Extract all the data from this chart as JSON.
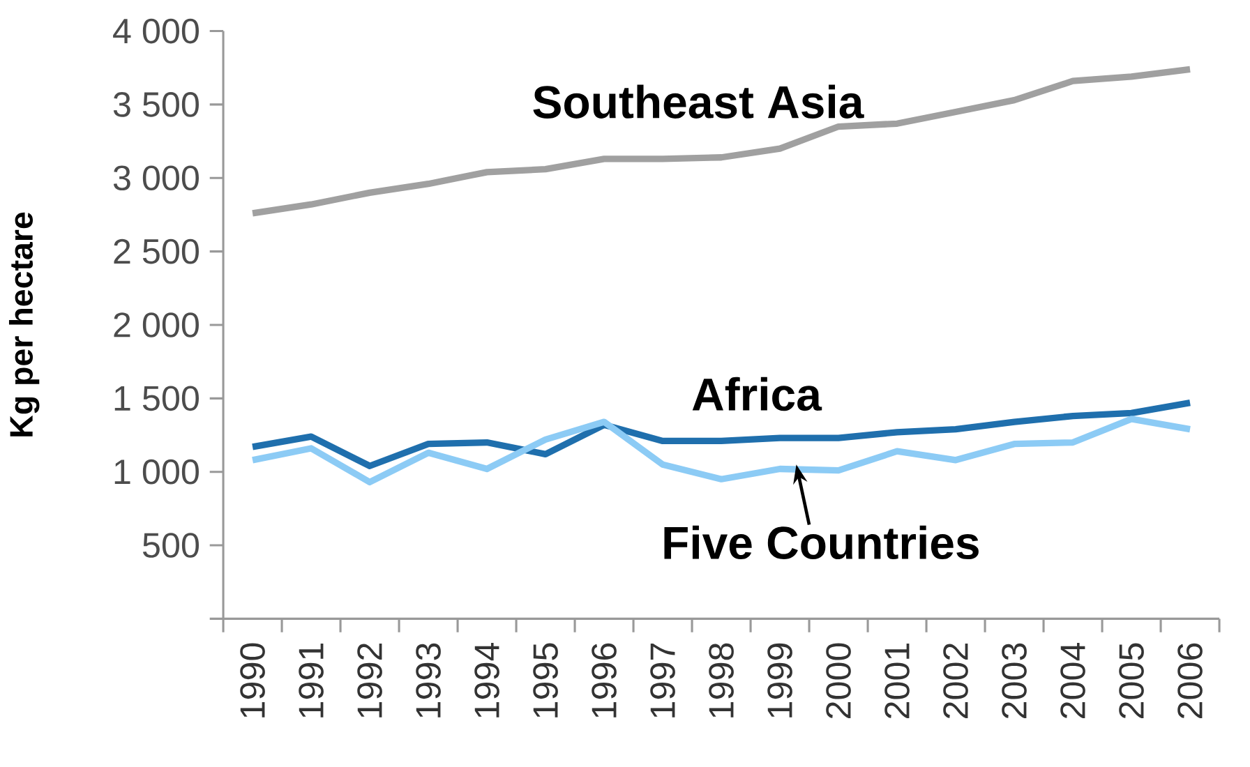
{
  "chart_data": {
    "type": "line",
    "ylabel": "Kg per hectare",
    "categories": [
      "1990",
      "1991",
      "1992",
      "1993",
      "1994",
      "1995",
      "1996",
      "1997",
      "1998",
      "1999",
      "2000",
      "2001",
      "2002",
      "2003",
      "2004",
      "2005",
      "2006"
    ],
    "ylim": [
      0,
      4000
    ],
    "yticks": [
      {
        "value": 0,
        "label": null
      },
      {
        "value": 500,
        "label": "500"
      },
      {
        "value": 1000,
        "label": "1 000"
      },
      {
        "value": 1500,
        "label": "1 500"
      },
      {
        "value": 2000,
        "label": "2 000"
      },
      {
        "value": 2500,
        "label": "2 500"
      },
      {
        "value": 3000,
        "label": "3 000"
      },
      {
        "value": 3500,
        "label": "3 500"
      },
      {
        "value": 4000,
        "label": "4 000"
      }
    ],
    "grid": false,
    "legend": false,
    "marker": "none",
    "line_style": "solid",
    "series": [
      {
        "name": "Southeast Asia",
        "color": "#a0a0a0",
        "values": [
          2760,
          2820,
          2900,
          2960,
          3040,
          3060,
          3130,
          3130,
          3140,
          3200,
          3350,
          3370,
          3450,
          3530,
          3660,
          3690,
          3740
        ]
      },
      {
        "name": "Africa",
        "color": "#1f6fad",
        "values": [
          1170,
          1240,
          1040,
          1190,
          1200,
          1120,
          1320,
          1210,
          1210,
          1230,
          1230,
          1270,
          1290,
          1340,
          1380,
          1400,
          1470
        ]
      },
      {
        "name": "Five Countries",
        "color": "#8ccbf5",
        "values": [
          1080,
          1160,
          930,
          1130,
          1020,
          1220,
          1340,
          1050,
          950,
          1020,
          1010,
          1140,
          1080,
          1190,
          1200,
          1360,
          1290
        ]
      }
    ]
  }
}
